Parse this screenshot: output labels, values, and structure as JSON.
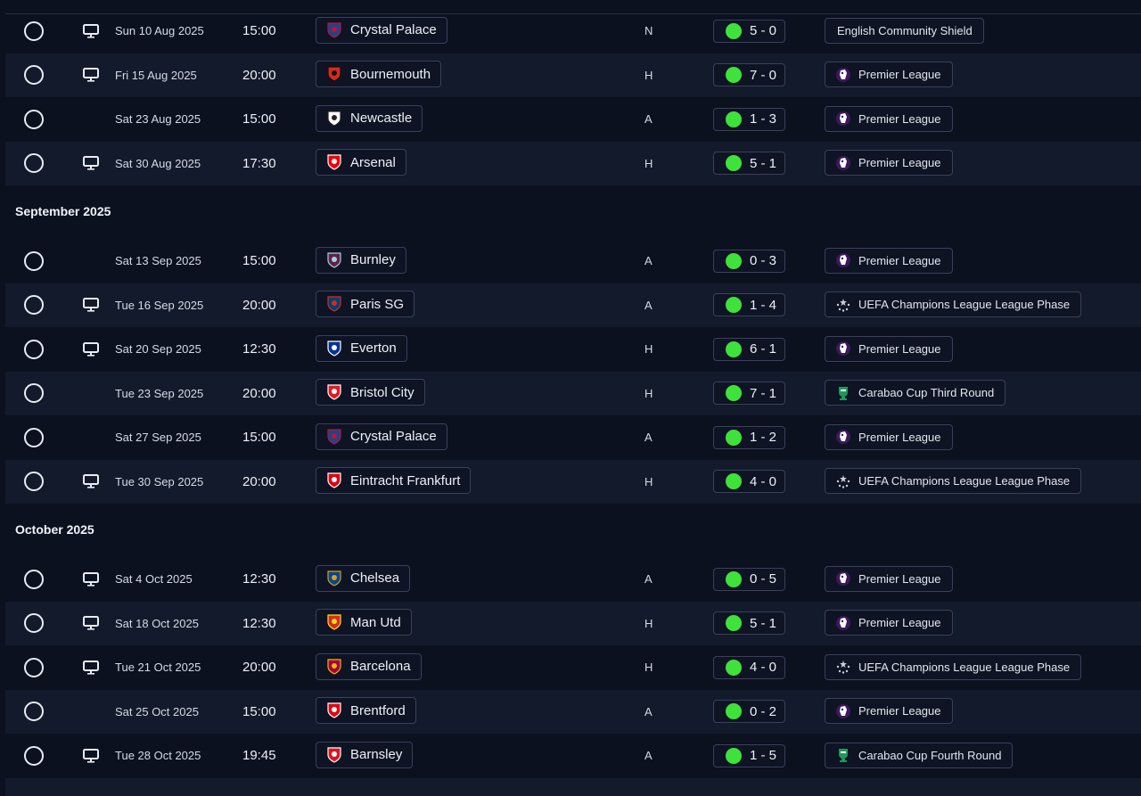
{
  "sections": [
    {
      "month": "",
      "matches": [
        {
          "date": "Sun 10 Aug 2025",
          "time": "15:00",
          "tv": true,
          "opponent": "Crystal Palace",
          "crest": "crystal-palace",
          "venue": "N",
          "score": "5 - 0",
          "competition": "English Community Shield",
          "comp_icon": "none"
        },
        {
          "date": "Fri 15 Aug 2025",
          "time": "20:00",
          "tv": true,
          "opponent": "Bournemouth",
          "crest": "bournemouth",
          "venue": "H",
          "score": "7 - 0",
          "competition": "Premier League",
          "comp_icon": "premier-league"
        },
        {
          "date": "Sat 23 Aug 2025",
          "time": "15:00",
          "tv": false,
          "opponent": "Newcastle",
          "crest": "newcastle",
          "venue": "A",
          "score": "1 - 3",
          "competition": "Premier League",
          "comp_icon": "premier-league"
        },
        {
          "date": "Sat 30 Aug 2025",
          "time": "17:30",
          "tv": true,
          "opponent": "Arsenal",
          "crest": "arsenal",
          "venue": "H",
          "score": "5 - 1",
          "competition": "Premier League",
          "comp_icon": "premier-league"
        }
      ]
    },
    {
      "month": "September 2025",
      "matches": [
        {
          "date": "Sat 13 Sep 2025",
          "time": "15:00",
          "tv": false,
          "opponent": "Burnley",
          "crest": "burnley",
          "venue": "A",
          "score": "0 - 3",
          "competition": "Premier League",
          "comp_icon": "premier-league"
        },
        {
          "date": "Tue 16 Sep 2025",
          "time": "20:00",
          "tv": true,
          "opponent": "Paris SG",
          "crest": "paris-sg",
          "venue": "A",
          "score": "1 - 4",
          "competition": "UEFA Champions League League Phase",
          "comp_icon": "champions-league"
        },
        {
          "date": "Sat 20 Sep 2025",
          "time": "12:30",
          "tv": true,
          "opponent": "Everton",
          "crest": "everton",
          "venue": "H",
          "score": "6 - 1",
          "competition": "Premier League",
          "comp_icon": "premier-league"
        },
        {
          "date": "Tue 23 Sep 2025",
          "time": "20:00",
          "tv": false,
          "opponent": "Bristol City",
          "crest": "bristol-city",
          "venue": "H",
          "score": "7 - 1",
          "competition": "Carabao Cup Third Round",
          "comp_icon": "carabao-cup"
        },
        {
          "date": "Sat 27 Sep 2025",
          "time": "15:00",
          "tv": false,
          "opponent": "Crystal Palace",
          "crest": "crystal-palace",
          "venue": "A",
          "score": "1 - 2",
          "competition": "Premier League",
          "comp_icon": "premier-league"
        },
        {
          "date": "Tue 30 Sep 2025",
          "time": "20:00",
          "tv": true,
          "opponent": "Eintracht Frankfurt",
          "crest": "eintracht-frankfurt",
          "venue": "H",
          "score": "4 - 0",
          "competition": "UEFA Champions League League Phase",
          "comp_icon": "champions-league"
        }
      ]
    },
    {
      "month": "October 2025",
      "matches": [
        {
          "date": "Sat 4 Oct 2025",
          "time": "12:30",
          "tv": true,
          "opponent": "Chelsea",
          "crest": "chelsea",
          "venue": "A",
          "score": "0 - 5",
          "competition": "Premier League",
          "comp_icon": "premier-league"
        },
        {
          "date": "Sat 18 Oct 2025",
          "time": "12:30",
          "tv": true,
          "opponent": "Man Utd",
          "crest": "man-utd",
          "venue": "H",
          "score": "5 - 1",
          "competition": "Premier League",
          "comp_icon": "premier-league"
        },
        {
          "date": "Tue 21 Oct 2025",
          "time": "20:00",
          "tv": true,
          "opponent": "Barcelona",
          "crest": "barcelona",
          "venue": "H",
          "score": "4 - 0",
          "competition": "UEFA Champions League League Phase",
          "comp_icon": "champions-league"
        },
        {
          "date": "Sat 25 Oct 2025",
          "time": "15:00",
          "tv": false,
          "opponent": "Brentford",
          "crest": "brentford",
          "venue": "A",
          "score": "0 - 2",
          "competition": "Premier League",
          "comp_icon": "premier-league"
        },
        {
          "date": "Tue 28 Oct 2025",
          "time": "19:45",
          "tv": true,
          "opponent": "Barnsley",
          "crest": "barnsley",
          "venue": "A",
          "score": "1 - 5",
          "competition": "Carabao Cup Fourth Round",
          "comp_icon": "carabao-cup"
        }
      ]
    }
  ],
  "colors": {
    "background": "#0c1120",
    "row_alt": "#131a2b",
    "win_dot": "#3ee23a",
    "chip_border": "#39405a"
  }
}
